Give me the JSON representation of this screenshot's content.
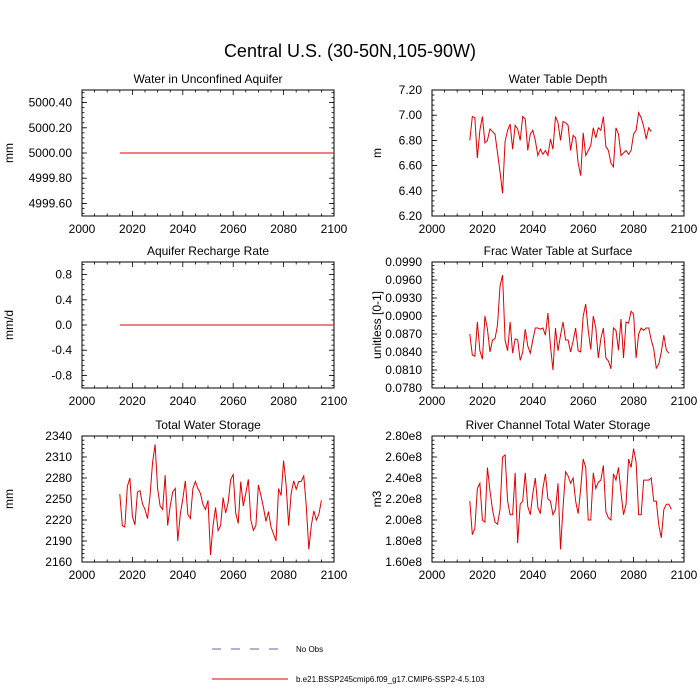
{
  "title": "Central U.S. (30-50N,105-90W)",
  "legend": {
    "obs_label": "No Obs",
    "model_label": "b.e21.BSSP245cmip6.f09_g17.CMIP6-SSP2-4.5.103",
    "obs_color": "#7a5ca0",
    "model_color": "#e00000"
  },
  "chart_data": [
    {
      "type": "line",
      "title": "Water in Unconfined Aquifer",
      "ylabel": "mm",
      "xlim": [
        2000,
        2100
      ],
      "ylim": [
        4999.5,
        5000.5
      ],
      "xticks": [
        2000,
        2020,
        2040,
        2060,
        2080,
        2100
      ],
      "yticks": [
        4999.6,
        4999.8,
        5000.0,
        5000.2,
        5000.4
      ],
      "ytick_labels": [
        "4999.60",
        "4999.80",
        "5000.00",
        "5000.20",
        "5000.40"
      ],
      "series": [
        {
          "x_start": 2015,
          "values": [
            5000,
            5000,
            5000,
            5000,
            5000,
            5000,
            5000,
            5000,
            5000,
            5000,
            5000,
            5000,
            5000,
            5000,
            5000,
            5000,
            5000,
            5000,
            5000,
            5000,
            5000,
            5000,
            5000,
            5000,
            5000,
            5000,
            5000,
            5000,
            5000,
            5000,
            5000,
            5000,
            5000,
            5000,
            5000,
            5000,
            5000,
            5000,
            5000,
            5000,
            5000,
            5000,
            5000,
            5000,
            5000,
            5000,
            5000,
            5000,
            5000,
            5000,
            5000,
            5000,
            5000,
            5000,
            5000,
            5000,
            5000,
            5000,
            5000,
            5000,
            5000,
            5000,
            5000,
            5000,
            5000,
            5000,
            5000,
            5000,
            5000,
            5000,
            5000,
            5000,
            5000,
            5000,
            5000,
            5000,
            5000,
            5000,
            5000,
            5000,
            5000,
            5000,
            5000,
            5000,
            5000,
            5000
          ]
        }
      ]
    },
    {
      "type": "line",
      "title": "Water Table Depth",
      "ylabel": "m",
      "xlim": [
        2000,
        2100
      ],
      "ylim": [
        6.2,
        7.2
      ],
      "xticks": [
        2000,
        2020,
        2040,
        2060,
        2080,
        2100
      ],
      "yticks": [
        6.2,
        6.4,
        6.6,
        6.8,
        7.0,
        7.2
      ],
      "ytick_labels": [
        "6.20",
        "6.40",
        "6.60",
        "6.80",
        "7.00",
        "7.20"
      ],
      "series": [
        {
          "x_start": 2015,
          "values": [
            6.8,
            6.99,
            6.98,
            6.66,
            6.88,
            6.99,
            6.78,
            6.8,
            6.89,
            6.87,
            6.85,
            6.7,
            6.55,
            6.38,
            6.79,
            6.88,
            6.93,
            6.73,
            6.92,
            6.89,
            6.8,
            6.99,
            6.97,
            6.72,
            6.85,
            6.88,
            6.8,
            6.68,
            6.73,
            6.69,
            6.72,
            6.68,
            6.81,
            6.73,
            6.99,
            6.94,
            6.8,
            6.95,
            6.94,
            6.92,
            6.72,
            6.84,
            6.82,
            6.62,
            6.52,
            6.86,
            6.68,
            6.72,
            6.76,
            6.9,
            6.82,
            6.9,
            6.88,
            6.99,
            6.75,
            6.72,
            6.62,
            6.59,
            6.9,
            6.85,
            6.68,
            6.7,
            6.72,
            6.69,
            6.72,
            6.85,
            6.88,
            7.02,
            6.98,
            6.91,
            6.81,
            6.9,
            6.87
          ]
        }
      ]
    },
    {
      "type": "line",
      "title": "Aquifer Recharge Rate",
      "ylabel": "mm/d",
      "xlim": [
        2000,
        2100
      ],
      "ylim": [
        -1.0,
        1.0
      ],
      "xticks": [
        2000,
        2020,
        2040,
        2060,
        2080,
        2100
      ],
      "yticks": [
        -0.8,
        -0.4,
        0.0,
        0.4,
        0.8
      ],
      "ytick_labels": [
        "-0.8",
        "-0.4",
        "0.0",
        "0.4",
        "0.8"
      ],
      "series": [
        {
          "x_start": 2015,
          "values": [
            0,
            0,
            0,
            0,
            0,
            0,
            0,
            0,
            0,
            0,
            0,
            0,
            0,
            0,
            0,
            0,
            0,
            0,
            0,
            0,
            0,
            0,
            0,
            0,
            0,
            0,
            0,
            0,
            0,
            0,
            0,
            0,
            0,
            0,
            0,
            0,
            0,
            0,
            0,
            0,
            0,
            0,
            0,
            0,
            0,
            0,
            0,
            0,
            0,
            0,
            0,
            0,
            0,
            0,
            0,
            0,
            0,
            0,
            0,
            0,
            0,
            0,
            0,
            0,
            0,
            0,
            0,
            0,
            0,
            0,
            0,
            0,
            0,
            0,
            0,
            0,
            0,
            0,
            0,
            0,
            0,
            0,
            0,
            0,
            0,
            0
          ]
        }
      ]
    },
    {
      "type": "line",
      "title": "Frac Water Table at Surface",
      "ylabel": "unitless [0-1]",
      "xlim": [
        2000,
        2100
      ],
      "ylim": [
        0.078,
        0.099
      ],
      "xticks": [
        2000,
        2020,
        2040,
        2060,
        2080,
        2100
      ],
      "yticks": [
        0.078,
        0.081,
        0.084,
        0.087,
        0.09,
        0.093,
        0.096,
        0.099
      ],
      "ytick_labels": [
        "0.0780",
        "0.0810",
        "0.0840",
        "0.0870",
        "0.0900",
        "0.0930",
        "0.0960",
        "0.0990"
      ],
      "series": [
        {
          "x_start": 2015,
          "values": [
            0.087,
            0.0835,
            0.0833,
            0.089,
            0.0842,
            0.0828,
            0.09,
            0.0878,
            0.084,
            0.086,
            0.0862,
            0.0885,
            0.095,
            0.0968,
            0.086,
            0.0842,
            0.089,
            0.0838,
            0.0862,
            0.086,
            0.0826,
            0.084,
            0.0878,
            0.085,
            0.0838,
            0.086,
            0.088,
            0.088,
            0.0878,
            0.088,
            0.0868,
            0.0905,
            0.085,
            0.081,
            0.088,
            0.0842,
            0.0868,
            0.089,
            0.086,
            0.086,
            0.084,
            0.0858,
            0.088,
            0.0842,
            0.084,
            0.09,
            0.092,
            0.0876,
            0.0844,
            0.09,
            0.088,
            0.083,
            0.0862,
            0.088,
            0.083,
            0.0825,
            0.0812,
            0.088,
            0.0876,
            0.0843,
            0.0895,
            0.083,
            0.089,
            0.0888,
            0.0908,
            0.0903,
            0.083,
            0.087,
            0.088,
            0.0876,
            0.088,
            0.088,
            0.086,
            0.0845,
            0.0813,
            0.082,
            0.084,
            0.0868,
            0.0843,
            0.0838
          ]
        }
      ]
    },
    {
      "type": "line",
      "title": "Total Water Storage",
      "ylabel": "mm",
      "xlim": [
        2000,
        2100
      ],
      "ylim": [
        2160,
        2340
      ],
      "xticks": [
        2000,
        2020,
        2040,
        2060,
        2080,
        2100
      ],
      "yticks": [
        2160,
        2190,
        2220,
        2250,
        2280,
        2310,
        2340
      ],
      "ytick_labels": [
        "2160",
        "2190",
        "2220",
        "2250",
        "2280",
        "2310",
        "2340"
      ],
      "series": [
        {
          "x_start": 2015,
          "values": [
            2257,
            2212,
            2210,
            2268,
            2280,
            2225,
            2213,
            2260,
            2262,
            2243,
            2235,
            2222,
            2255,
            2302,
            2328,
            2265,
            2240,
            2235,
            2284,
            2212,
            2240,
            2260,
            2265,
            2190,
            2228,
            2250,
            2276,
            2228,
            2222,
            2265,
            2275,
            2265,
            2258,
            2242,
            2235,
            2248,
            2170,
            2212,
            2238,
            2205,
            2212,
            2252,
            2230,
            2245,
            2278,
            2285,
            2230,
            2215,
            2275,
            2240,
            2258,
            2278,
            2220,
            2205,
            2212,
            2270,
            2255,
            2238,
            2218,
            2232,
            2210,
            2200,
            2190,
            2265,
            2255,
            2305,
            2270,
            2212,
            2258,
            2276,
            2264,
            2275,
            2275,
            2283,
            2240,
            2178,
            2212,
            2233,
            2220,
            2228,
            2248
          ]
        }
      ]
    },
    {
      "type": "line",
      "title": "River Channel Total Water Storage",
      "ylabel": "m3",
      "xlim": [
        2000,
        2100
      ],
      "ylim": [
        160000000,
        280000000
      ],
      "xticks": [
        2000,
        2020,
        2040,
        2060,
        2080,
        2100
      ],
      "yticks": [
        160000000,
        180000000,
        200000000,
        220000000,
        240000000,
        260000000,
        280000000
      ],
      "ytick_labels": [
        "1.60e8",
        "1.80e8",
        "2.00e8",
        "2.20e8",
        "2.40e8",
        "2.60e8",
        "2.80e8"
      ],
      "series": [
        {
          "x_start": 2015,
          "values": [
            218000000,
            186000000,
            192000000,
            230000000,
            235000000,
            200000000,
            198000000,
            250000000,
            228000000,
            210000000,
            198000000,
            196000000,
            210000000,
            260000000,
            262000000,
            218000000,
            205000000,
            205000000,
            245000000,
            178000000,
            215000000,
            218000000,
            245000000,
            213000000,
            205000000,
            225000000,
            240000000,
            212000000,
            206000000,
            230000000,
            244000000,
            220000000,
            218000000,
            205000000,
            210000000,
            235000000,
            172000000,
            212000000,
            246000000,
            242000000,
            235000000,
            240000000,
            218000000,
            206000000,
            230000000,
            258000000,
            250000000,
            200000000,
            200000000,
            245000000,
            230000000,
            236000000,
            238000000,
            252000000,
            208000000,
            202000000,
            200000000,
            244000000,
            238000000,
            250000000,
            226000000,
            205000000,
            215000000,
            258000000,
            250000000,
            268000000,
            255000000,
            205000000,
            205000000,
            238000000,
            238000000,
            238000000,
            240000000,
            218000000,
            218000000,
            195000000,
            183000000,
            210000000,
            215000000,
            215000000,
            210000000
          ]
        }
      ]
    }
  ]
}
